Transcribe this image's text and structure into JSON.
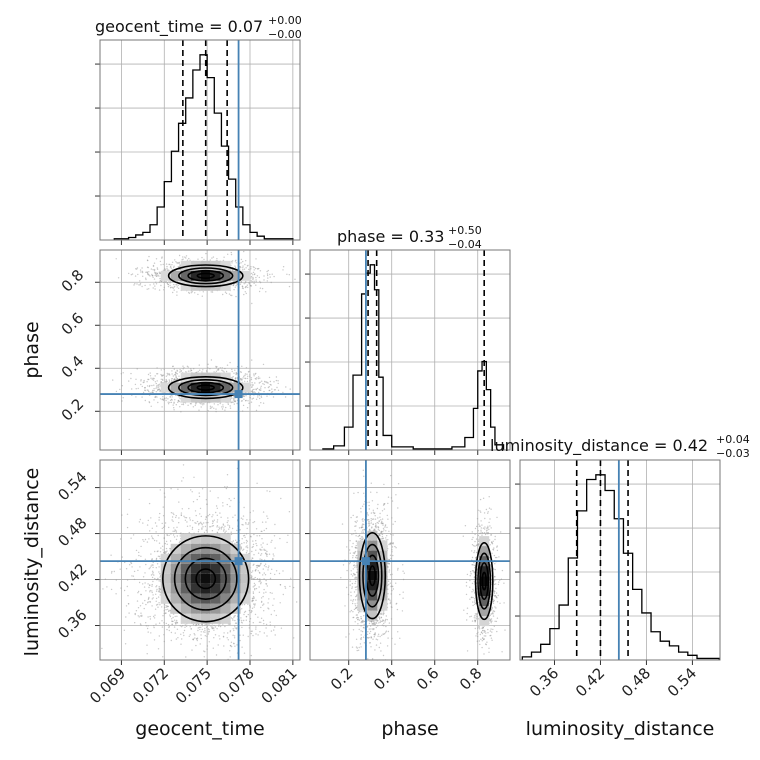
{
  "colors": {
    "truth": "#4682b4",
    "hist": "#000000",
    "grid": "#b0b0b0",
    "scatter": "#9a9a9a"
  },
  "chart_data": {
    "type": "corner",
    "parameters": [
      "geocent_time",
      "phase",
      "luminosity_distance"
    ],
    "ranges": {
      "geocent_time": [
        0.0675,
        0.0815
      ],
      "phase": [
        0.02,
        0.95
      ],
      "luminosity_distance": [
        0.315,
        0.576
      ]
    },
    "truths": {
      "geocent_time": 0.0772,
      "phase": 0.28,
      "luminosity_distance": 0.444
    },
    "ticks": {
      "geocent_time": {
        "values": [
          0.069,
          0.072,
          0.075,
          0.078,
          0.081
        ],
        "labels": [
          "0.069",
          "0.072",
          "0.075",
          "0.078",
          "0.081"
        ]
      },
      "phase_x": {
        "values": [
          0.2,
          0.4,
          0.6,
          0.8
        ],
        "labels": [
          "0.2",
          "0.4",
          "0.6",
          "0.8"
        ]
      },
      "phase_y": {
        "values": [
          0.2,
          0.4,
          0.6,
          0.8
        ],
        "labels": [
          "0.2",
          "0.4",
          "0.6",
          "0.8"
        ]
      },
      "luminosity_distance": {
        "values": [
          0.36,
          0.42,
          0.48,
          0.54
        ],
        "labels": [
          "0.36",
          "0.42",
          "0.48",
          "0.54"
        ]
      }
    },
    "titles": {
      "geocent_time": {
        "main": "geocent_time = 0.07",
        "sup": "+0.00",
        "sub": "−0.00"
      },
      "phase": {
        "main": "phase = 0.33",
        "sup": "+0.50",
        "sub": "−0.04"
      },
      "luminosity_distance": {
        "main": "luminosity_distance = 0.42",
        "sup": "+0.04",
        "sub": "−0.03"
      }
    },
    "axis_labels": {
      "x": [
        "geocent_time",
        "phase",
        "luminosity_distance"
      ],
      "y": [
        "phase",
        "luminosity_distance"
      ]
    },
    "quantiles": {
      "geocent_time": [
        0.0733,
        0.0749,
        0.0764
      ],
      "phase": [
        0.29,
        0.33,
        0.83
      ],
      "luminosity_distance": [
        0.389,
        0.42,
        0.456
      ]
    },
    "histograms": {
      "geocent_time": {
        "edges": [
          0.0685,
          0.0695,
          0.07,
          0.0705,
          0.071,
          0.0715,
          0.072,
          0.0725,
          0.073,
          0.0735,
          0.074,
          0.0745,
          0.075,
          0.0755,
          0.076,
          0.0765,
          0.077,
          0.0775,
          0.078,
          0.0785,
          0.079,
          0.08,
          0.081
        ],
        "counts": [
          1,
          2,
          4,
          6,
          12,
          26,
          46,
          70,
          92,
          112,
          134,
          146,
          128,
          100,
          74,
          48,
          26,
          12,
          6,
          3,
          1,
          1
        ]
      },
      "phase": {
        "edges": [
          0.08,
          0.13,
          0.18,
          0.22,
          0.26,
          0.28,
          0.3,
          0.32,
          0.34,
          0.36,
          0.4,
          0.5,
          0.6,
          0.68,
          0.74,
          0.78,
          0.8,
          0.82,
          0.84,
          0.86,
          0.88,
          0.92
        ],
        "counts": [
          1,
          4,
          22,
          72,
          150,
          170,
          178,
          154,
          70,
          14,
          3,
          1,
          1,
          3,
          12,
          40,
          76,
          85,
          58,
          22,
          5
        ]
      },
      "luminosity_distance": {
        "edges": [
          0.318,
          0.33,
          0.342,
          0.354,
          0.366,
          0.378,
          0.39,
          0.402,
          0.414,
          0.426,
          0.438,
          0.45,
          0.462,
          0.474,
          0.486,
          0.498,
          0.51,
          0.522,
          0.534,
          0.546,
          0.558,
          0.575
        ],
        "counts": [
          2,
          5,
          10,
          20,
          35,
          65,
          95,
          115,
          118,
          108,
          90,
          68,
          45,
          30,
          18,
          12,
          9,
          5,
          3,
          1,
          1
        ]
      }
    },
    "blobs": {
      "phase_vs_geocent_time": [
        {
          "cx": 0.0749,
          "cy": 0.83,
          "sx": 0.0013,
          "sy": 0.025,
          "n": 1300
        },
        {
          "cx": 0.0749,
          "cy": 0.31,
          "sx": 0.0013,
          "sy": 0.025,
          "n": 2000
        }
      ],
      "luminosity_distance_vs_geocent_time": [
        {
          "cx": 0.0749,
          "cy": 0.421,
          "sx": 0.0015,
          "sy": 0.028,
          "n": 2600
        }
      ],
      "luminosity_distance_vs_phase": [
        {
          "cx": 0.31,
          "cy": 0.425,
          "sx": 0.03,
          "sy": 0.028,
          "n": 1700
        },
        {
          "cx": 0.83,
          "cy": 0.418,
          "sx": 0.02,
          "sy": 0.025,
          "n": 900
        }
      ]
    }
  }
}
